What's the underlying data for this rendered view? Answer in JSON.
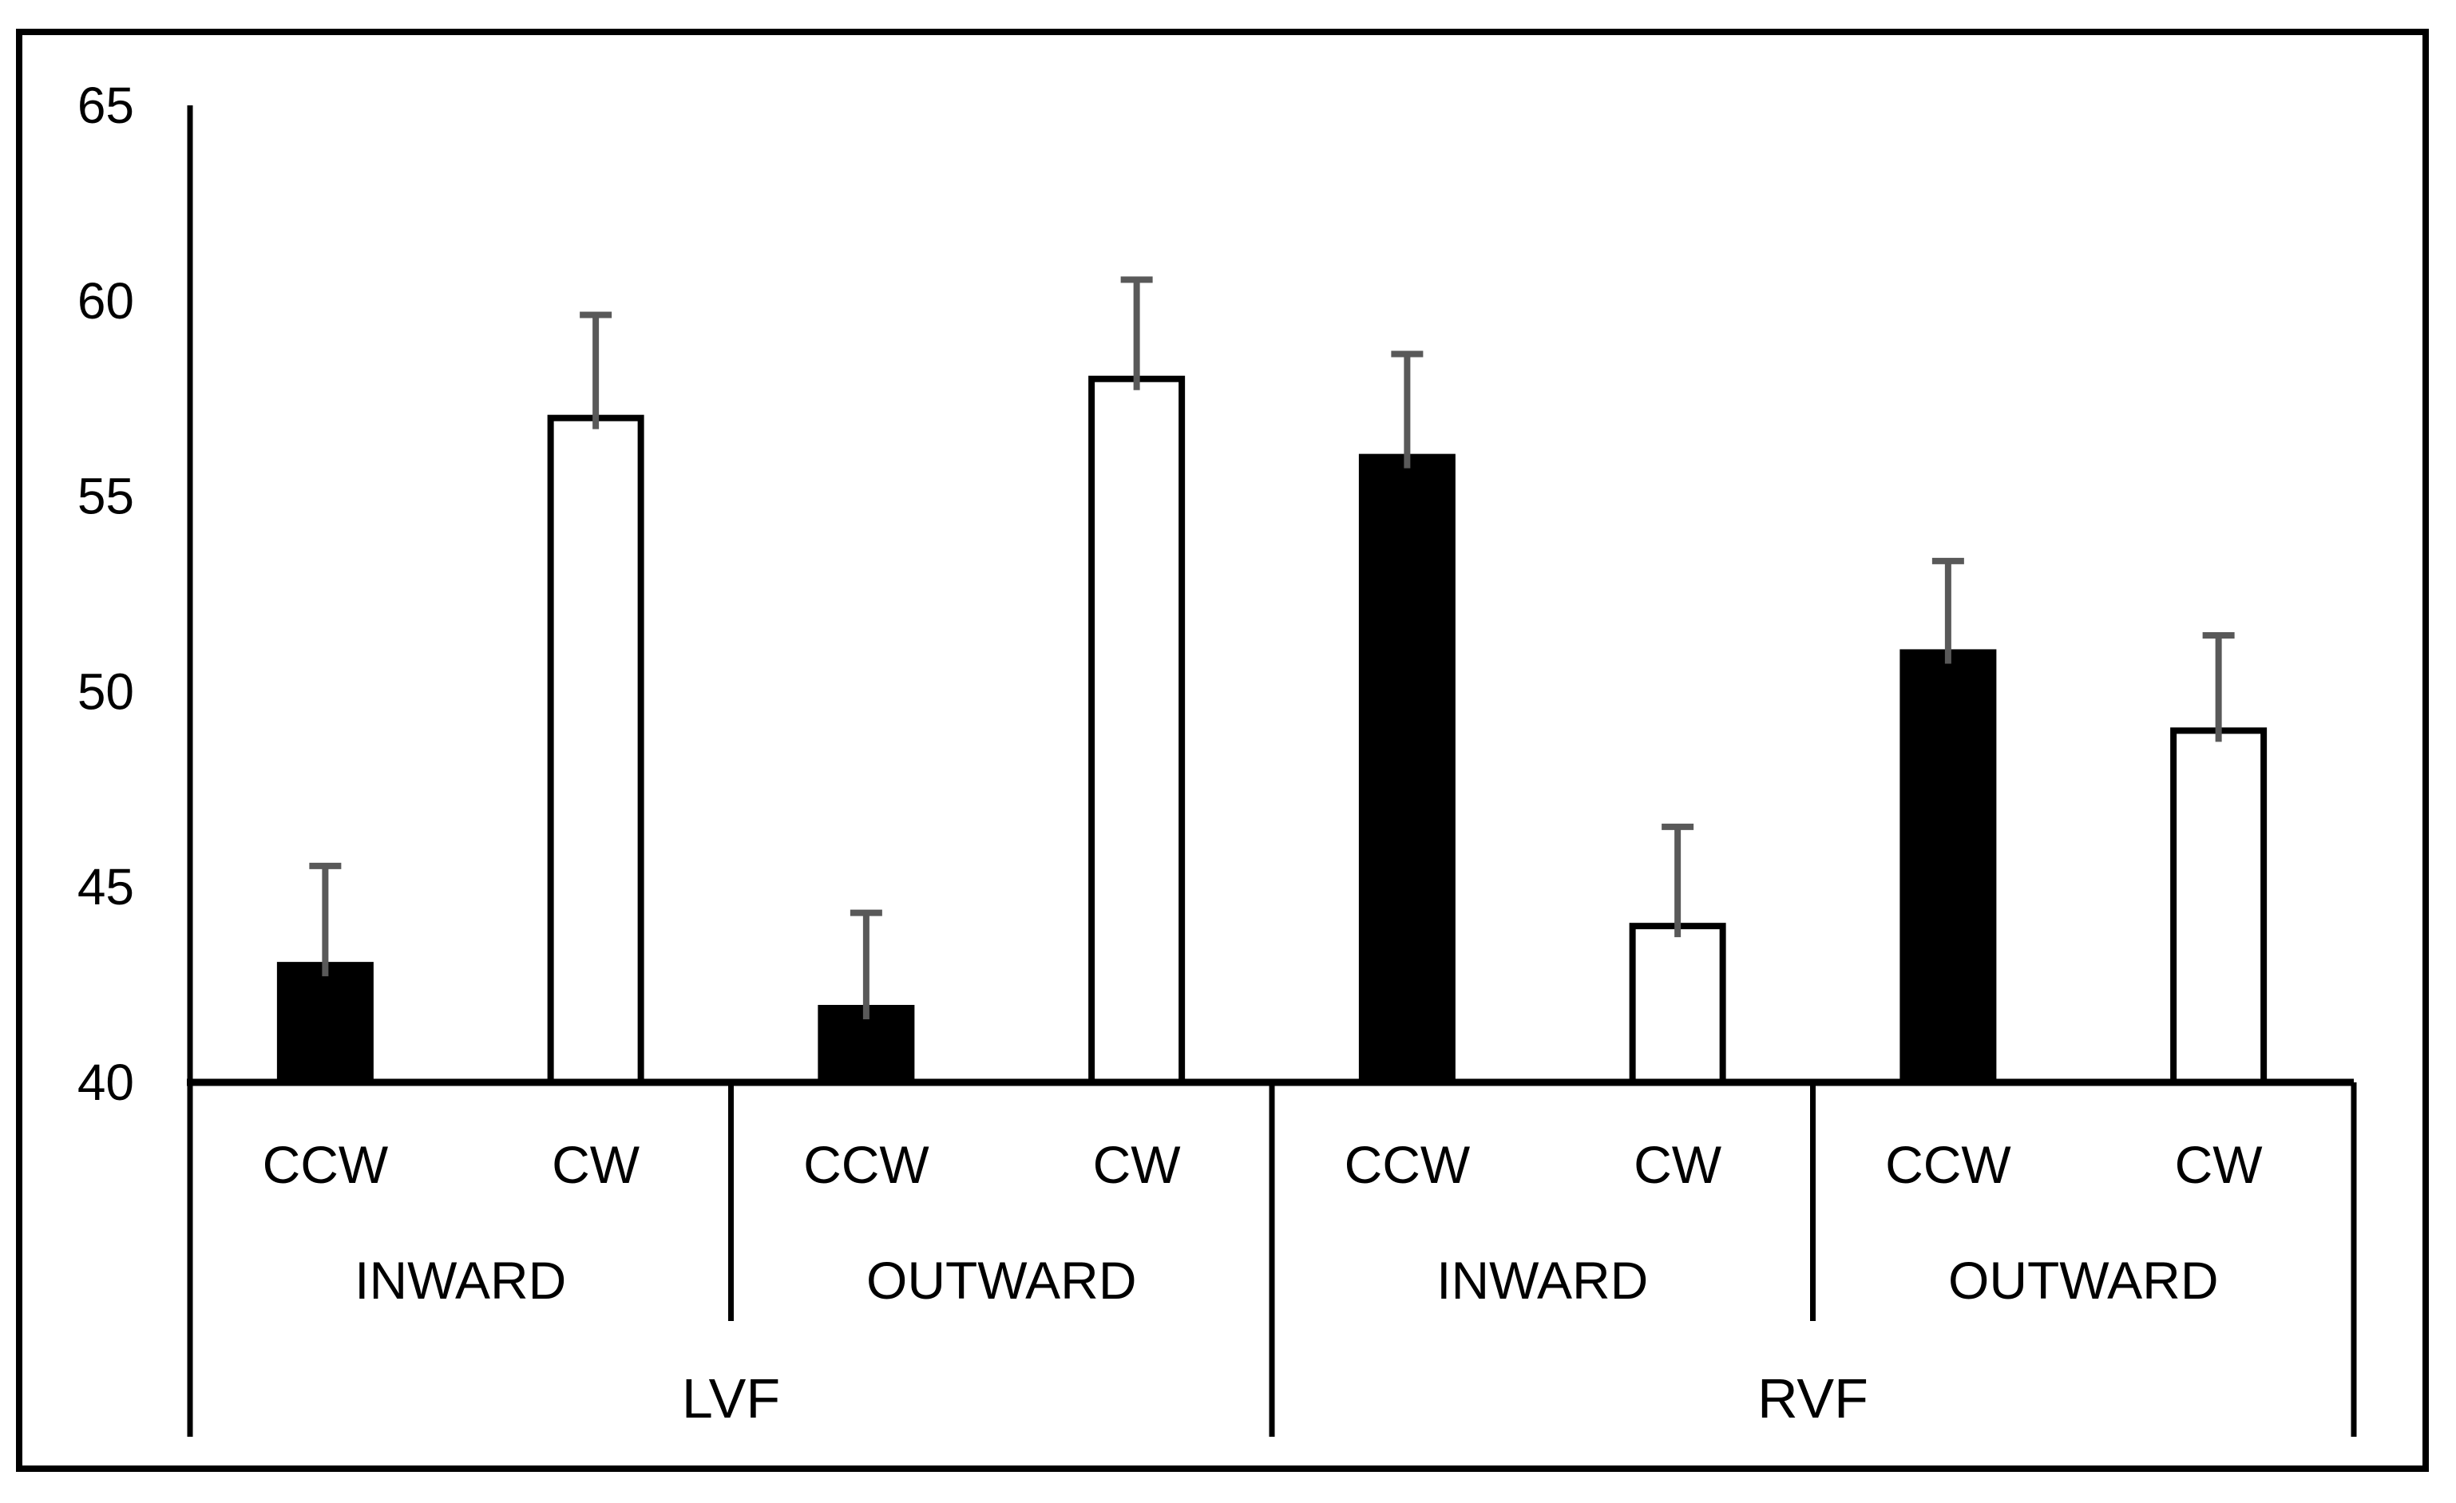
{
  "figure": {
    "background": "#ffffff",
    "border_color": "#000000",
    "text_color": "#000000"
  },
  "chart_data": {
    "type": "bar",
    "title": "",
    "xlabel": "",
    "ylabel": "",
    "ylim": [
      40,
      65
    ],
    "yticks": [
      "65",
      "60",
      "55",
      "50",
      "45",
      "40"
    ],
    "ytick_values": [
      65,
      60,
      55,
      50,
      45,
      40
    ],
    "grid": false,
    "legend_position": "none",
    "error_bar_color": "#595959",
    "bar_fill_by_rotation": {
      "CCW": "#000000",
      "CW": "#ffffff"
    },
    "category_levels": [
      "rotation",
      "direction",
      "visual_field"
    ],
    "bars": [
      {
        "visual_field": "LVF",
        "direction": "INWARD",
        "rotation": "CCW",
        "value": 43.0,
        "error_top": 45.6,
        "fill": "#000000"
      },
      {
        "visual_field": "LVF",
        "direction": "INWARD",
        "rotation": "CW",
        "value": 57.0,
        "error_top": 59.7,
        "fill": "#ffffff"
      },
      {
        "visual_field": "LVF",
        "direction": "OUTWARD",
        "rotation": "CCW",
        "value": 41.9,
        "error_top": 44.4,
        "fill": "#000000"
      },
      {
        "visual_field": "LVF",
        "direction": "OUTWARD",
        "rotation": "CW",
        "value": 58.0,
        "error_top": 60.6,
        "fill": "#ffffff"
      },
      {
        "visual_field": "RVF",
        "direction": "INWARD",
        "rotation": "CCW",
        "value": 56.0,
        "error_top": 58.7,
        "fill": "#000000"
      },
      {
        "visual_field": "RVF",
        "direction": "INWARD",
        "rotation": "CW",
        "value": 44.0,
        "error_top": 46.6,
        "fill": "#ffffff"
      },
      {
        "visual_field": "RVF",
        "direction": "OUTWARD",
        "rotation": "CCW",
        "value": 51.0,
        "error_top": 53.4,
        "fill": "#000000"
      },
      {
        "visual_field": "RVF",
        "direction": "OUTWARD",
        "rotation": "CW",
        "value": 49.0,
        "error_top": 51.5,
        "fill": "#ffffff"
      }
    ],
    "direction_groups": [
      {
        "label": "INWARD",
        "visual_field": "LVF"
      },
      {
        "label": "OUTWARD",
        "visual_field": "LVF"
      },
      {
        "label": "INWARD",
        "visual_field": "RVF"
      },
      {
        "label": "OUTWARD",
        "visual_field": "RVF"
      }
    ],
    "visual_field_groups": [
      {
        "label": "LVF"
      },
      {
        "label": "RVF"
      }
    ]
  }
}
